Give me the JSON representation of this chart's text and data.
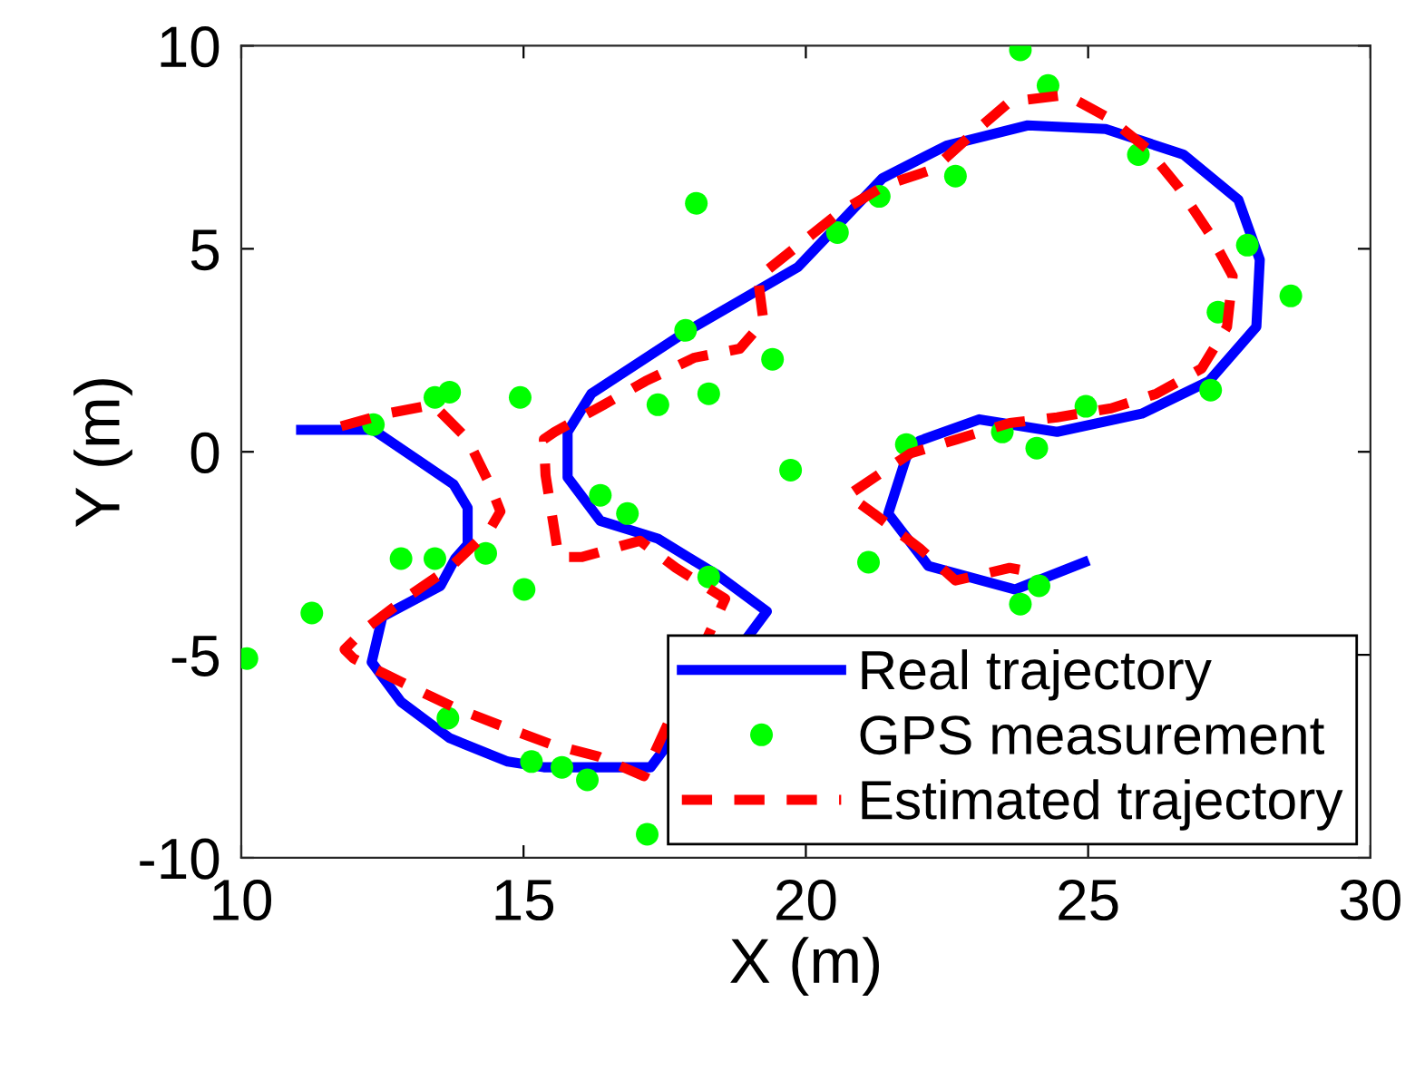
{
  "chart_data": {
    "type": "line",
    "xlabel": "X (m)",
    "ylabel": "Y (m)",
    "xlim": [
      10,
      30
    ],
    "ylim": [
      -10,
      10
    ],
    "xticks": [
      10,
      15,
      20,
      25,
      30
    ],
    "yticks": [
      -10,
      -5,
      0,
      5,
      10
    ],
    "grid": false,
    "legend": "bottom right",
    "series": [
      {
        "name": "Real trajectory",
        "color": "#0000ff",
        "line_style": "solid",
        "marker": "none",
        "x": [
          11.06,
          12.34,
          13.76,
          14.01,
          14.01,
          13.79,
          13.53,
          12.5,
          12.31,
          12.83,
          13.69,
          14.72,
          15.36,
          17.25,
          19.31,
          18.44,
          17.38,
          16.36,
          15.78,
          15.78,
          16.2,
          17.87,
          19.86,
          21.36,
          22.49,
          23.93,
          25.31,
          26.69,
          27.66,
          28.04,
          27.98,
          27.14,
          25.95,
          24.45,
          23.07,
          22.01,
          21.78,
          21.46,
          22.17,
          23.71,
          24.93
        ],
        "values": [
          0.54,
          0.54,
          -0.8,
          -1.38,
          -2.28,
          -2.63,
          -3.3,
          -4.06,
          -5.18,
          -6.16,
          -7.05,
          -7.63,
          -7.77,
          -7.77,
          -3.93,
          -3.04,
          -2.14,
          -1.7,
          -0.63,
          0.49,
          1.43,
          2.95,
          4.55,
          6.74,
          7.54,
          8.04,
          7.95,
          7.32,
          6.21,
          4.73,
          3.08,
          1.74,
          0.94,
          0.49,
          0.8,
          0.27,
          -0.13,
          -1.52,
          -2.81,
          -3.39,
          -2.72
        ]
      },
      {
        "name": "GPS measurement",
        "type": "scatter",
        "color": "#00ff00",
        "marker": "circle",
        "x": [
          10.1,
          11.25,
          12.34,
          12.83,
          13.43,
          13.43,
          13.69,
          14.33,
          14.94,
          15.01,
          13.66,
          15.14,
          15.68,
          16.13,
          17.19,
          16.36,
          16.84,
          18.28,
          19.73,
          17.38,
          18.28,
          19.41,
          17.87,
          18.06,
          23.8,
          24.29,
          22.65,
          21.3,
          20.56,
          25.89,
          27.82,
          28.59,
          27.3,
          27.17,
          24.96,
          23.48,
          24.09,
          21.78,
          21.11,
          23.8,
          24.13
        ],
        "values": [
          -5.09,
          -3.97,
          0.67,
          -2.63,
          -2.63,
          1.34,
          1.47,
          -2.5,
          1.34,
          -3.39,
          -6.56,
          -7.63,
          -7.77,
          -8.08,
          -9.42,
          -1.07,
          -1.52,
          -3.08,
          -0.45,
          1.16,
          1.43,
          2.28,
          2.99,
          6.12,
          9.9,
          9.02,
          6.79,
          6.29,
          5.4,
          7.32,
          5.09,
          3.84,
          3.44,
          1.52,
          1.12,
          0.49,
          0.09,
          0.18,
          -2.72,
          -3.75,
          -3.3
        ]
      },
      {
        "name": "Estimated trajectory",
        "color": "#ff0000",
        "line_style": "dashed",
        "marker": "none",
        "x": [
          11.77,
          12.57,
          13.4,
          14.01,
          14.4,
          14.59,
          14.4,
          13.69,
          12.99,
          12.18,
          11.83,
          11.99,
          12.89,
          13.76,
          14.59,
          15.46,
          16.32,
          17.13,
          18.57,
          17.7,
          17.06,
          16.04,
          15.62,
          15.55,
          15.39,
          15.36,
          15.55,
          16.42,
          17.16,
          18.03,
          18.83,
          19.25,
          19.15,
          19.95,
          20.59,
          21.4,
          22.26,
          22.97,
          23.61,
          24.61,
          25.38,
          26.05,
          26.6,
          27.14,
          27.56,
          27.46,
          27.01,
          26.21,
          25.41,
          24.45,
          23.61,
          22.68,
          21.85,
          20.98,
          20.75,
          21.2,
          22.01,
          22.65,
          23.61,
          23.96
        ],
        "values": [
          0.63,
          0.94,
          1.16,
          0.31,
          -0.8,
          -1.47,
          -1.92,
          -2.86,
          -3.53,
          -4.38,
          -4.87,
          -5.09,
          -5.71,
          -6.29,
          -6.74,
          -7.19,
          -7.5,
          -7.99,
          -3.62,
          -2.86,
          -2.19,
          -2.59,
          -2.59,
          -1.96,
          -0.58,
          0.31,
          0.49,
          1.16,
          1.74,
          2.32,
          2.54,
          3.21,
          4.29,
          5.18,
          5.89,
          6.56,
          6.96,
          7.86,
          8.62,
          8.79,
          8.21,
          7.46,
          6.52,
          5.4,
          4.33,
          3.08,
          2.05,
          1.43,
          1.07,
          0.85,
          0.71,
          0.31,
          -0.04,
          -0.85,
          -1.07,
          -1.52,
          -2.37,
          -3.17,
          -2.86,
          -2.95
        ]
      }
    ]
  }
}
